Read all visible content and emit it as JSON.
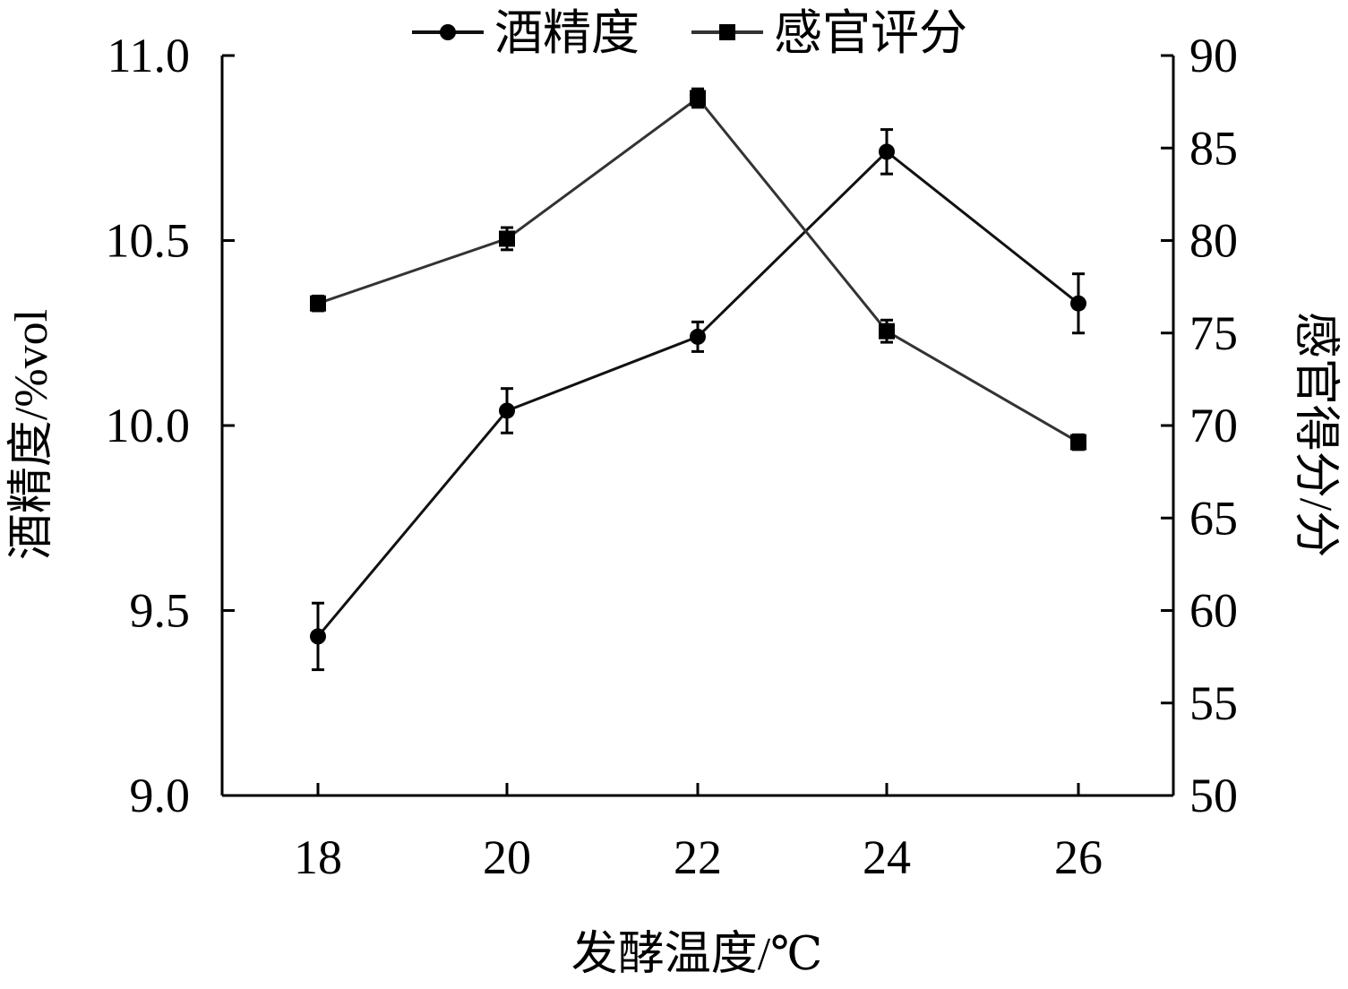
{
  "chart_data": {
    "type": "line",
    "xlabel": "发酵温度/℃",
    "categories": [
      18,
      20,
      22,
      24,
      26
    ],
    "x_tick_labels": [
      "18",
      "20",
      "22",
      "24",
      "26"
    ],
    "y_left": {
      "label": "酒精度/%vol",
      "ylim": [
        9.0,
        11.0
      ],
      "ticks": [
        "9.0",
        "9.5",
        "10.0",
        "10.5",
        "11.0"
      ]
    },
    "y_right": {
      "label": "感官得分/分",
      "ylim": [
        50,
        90
      ],
      "ticks": [
        "50",
        "55",
        "60",
        "65",
        "70",
        "75",
        "80",
        "85",
        "90"
      ]
    },
    "series": [
      {
        "name": "酒精度",
        "axis": "left",
        "marker": "circle",
        "color": "#111111",
        "values": [
          9.43,
          10.04,
          10.24,
          10.74,
          10.33
        ],
        "errors": [
          0.09,
          0.06,
          0.04,
          0.06,
          0.08
        ]
      },
      {
        "name": "感官评分",
        "axis": "right",
        "marker": "square",
        "color": "#333333",
        "values": [
          76.6,
          80.1,
          87.7,
          75.1,
          69.1
        ],
        "errors": [
          0.4,
          0.6,
          0.5,
          0.6,
          0.4
        ]
      }
    ],
    "legend": "top-center",
    "grid": false
  }
}
